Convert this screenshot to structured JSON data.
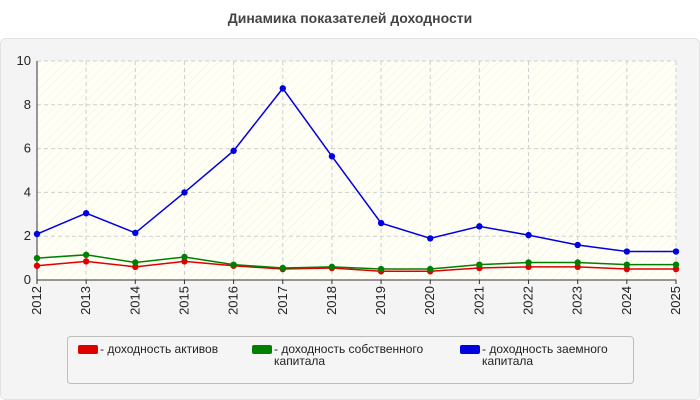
{
  "chart_data": {
    "type": "line",
    "title": "Динамика показателей доходности",
    "xlabel": "",
    "ylabel": "",
    "x": [
      "2012",
      "2013",
      "2014",
      "2015",
      "2016",
      "2017",
      "2018",
      "2019",
      "2020",
      "2021",
      "2022",
      "2023",
      "2024",
      "2025"
    ],
    "ylim": [
      0,
      10
    ],
    "yticks": [
      "0",
      "2",
      "4",
      "6",
      "8",
      "10"
    ],
    "grid": true,
    "legend_position": "bottom",
    "series": [
      {
        "name": "- доходность активов",
        "color": "#e00000",
        "values": [
          0.65,
          0.85,
          0.6,
          0.85,
          0.65,
          0.5,
          0.55,
          0.4,
          0.4,
          0.55,
          0.6,
          0.6,
          0.5,
          0.5
        ]
      },
      {
        "name": "- доходность собственного капитала",
        "color": "#008000",
        "values": [
          1.0,
          1.15,
          0.8,
          1.05,
          0.7,
          0.55,
          0.6,
          0.5,
          0.5,
          0.7,
          0.8,
          0.8,
          0.7,
          0.7
        ]
      },
      {
        "name": "- доходность заемного капитала",
        "color": "#0000e0",
        "values": [
          2.1,
          3.05,
          2.15,
          4.0,
          5.9,
          8.75,
          5.65,
          2.6,
          1.9,
          2.45,
          2.05,
          1.6,
          1.3,
          1.3
        ]
      }
    ]
  }
}
